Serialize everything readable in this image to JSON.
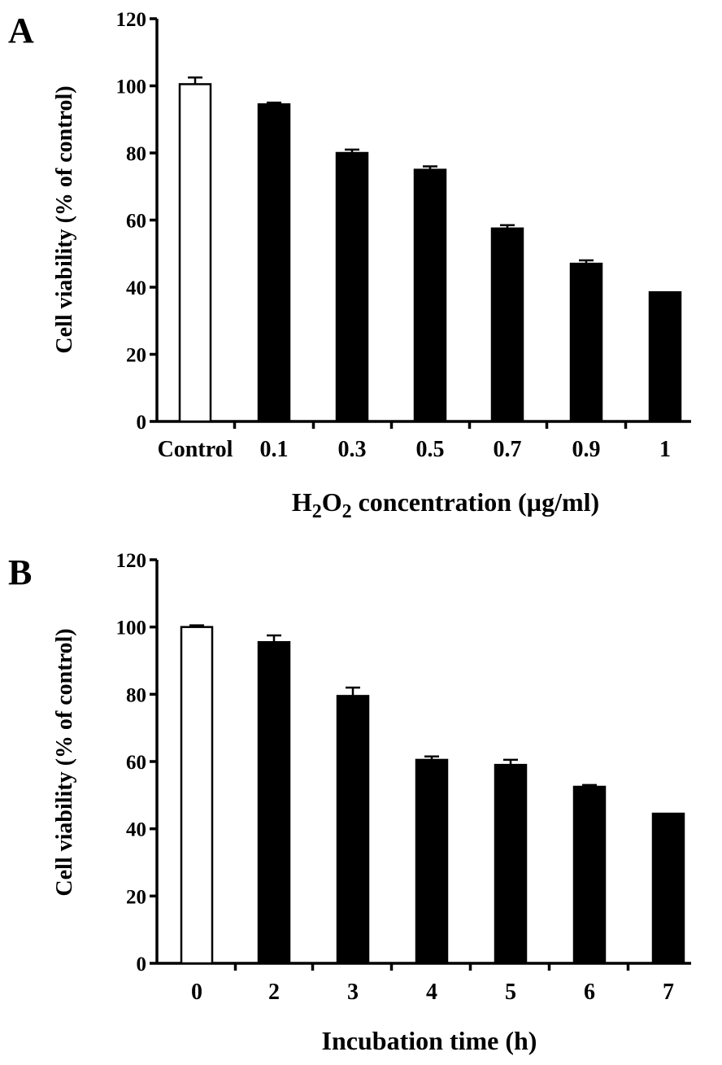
{
  "chart_data": [
    {
      "panel_label": "A",
      "type": "bar",
      "categories": [
        "Control",
        "0.1",
        "0.3",
        "0.5",
        "0.7",
        "0.9",
        "1"
      ],
      "values": [
        100.5,
        94.5,
        80,
        75,
        57.5,
        47,
        38.5
      ],
      "errors": [
        2,
        0.5,
        1,
        1,
        1,
        1,
        0
      ],
      "bar_colors": [
        "#ffffff",
        "#000000",
        "#000000",
        "#000000",
        "#000000",
        "#000000",
        "#000000"
      ],
      "ylabel": "Cell viability (% of control)",
      "xlabel_parts": [
        "H",
        "2",
        "O",
        "2",
        " concentration (µg/ml)"
      ],
      "ylim": [
        0,
        120
      ],
      "yticks": [
        0,
        20,
        40,
        60,
        80,
        100,
        120
      ]
    },
    {
      "panel_label": "B",
      "type": "bar",
      "categories": [
        "0",
        "2",
        "3",
        "4",
        "5",
        "6",
        "7"
      ],
      "values": [
        100,
        95.5,
        79.5,
        60.5,
        59,
        52.5,
        44.5
      ],
      "errors": [
        0.5,
        2,
        2.5,
        1,
        1.5,
        0.5,
        0
      ],
      "bar_colors": [
        "#ffffff",
        "#000000",
        "#000000",
        "#000000",
        "#000000",
        "#000000",
        "#000000"
      ],
      "ylabel": "Cell viability (% of control)",
      "xlabel": "Incubation time (h)",
      "ylim": [
        0,
        120
      ],
      "yticks": [
        0,
        20,
        40,
        60,
        80,
        100,
        120
      ]
    }
  ]
}
